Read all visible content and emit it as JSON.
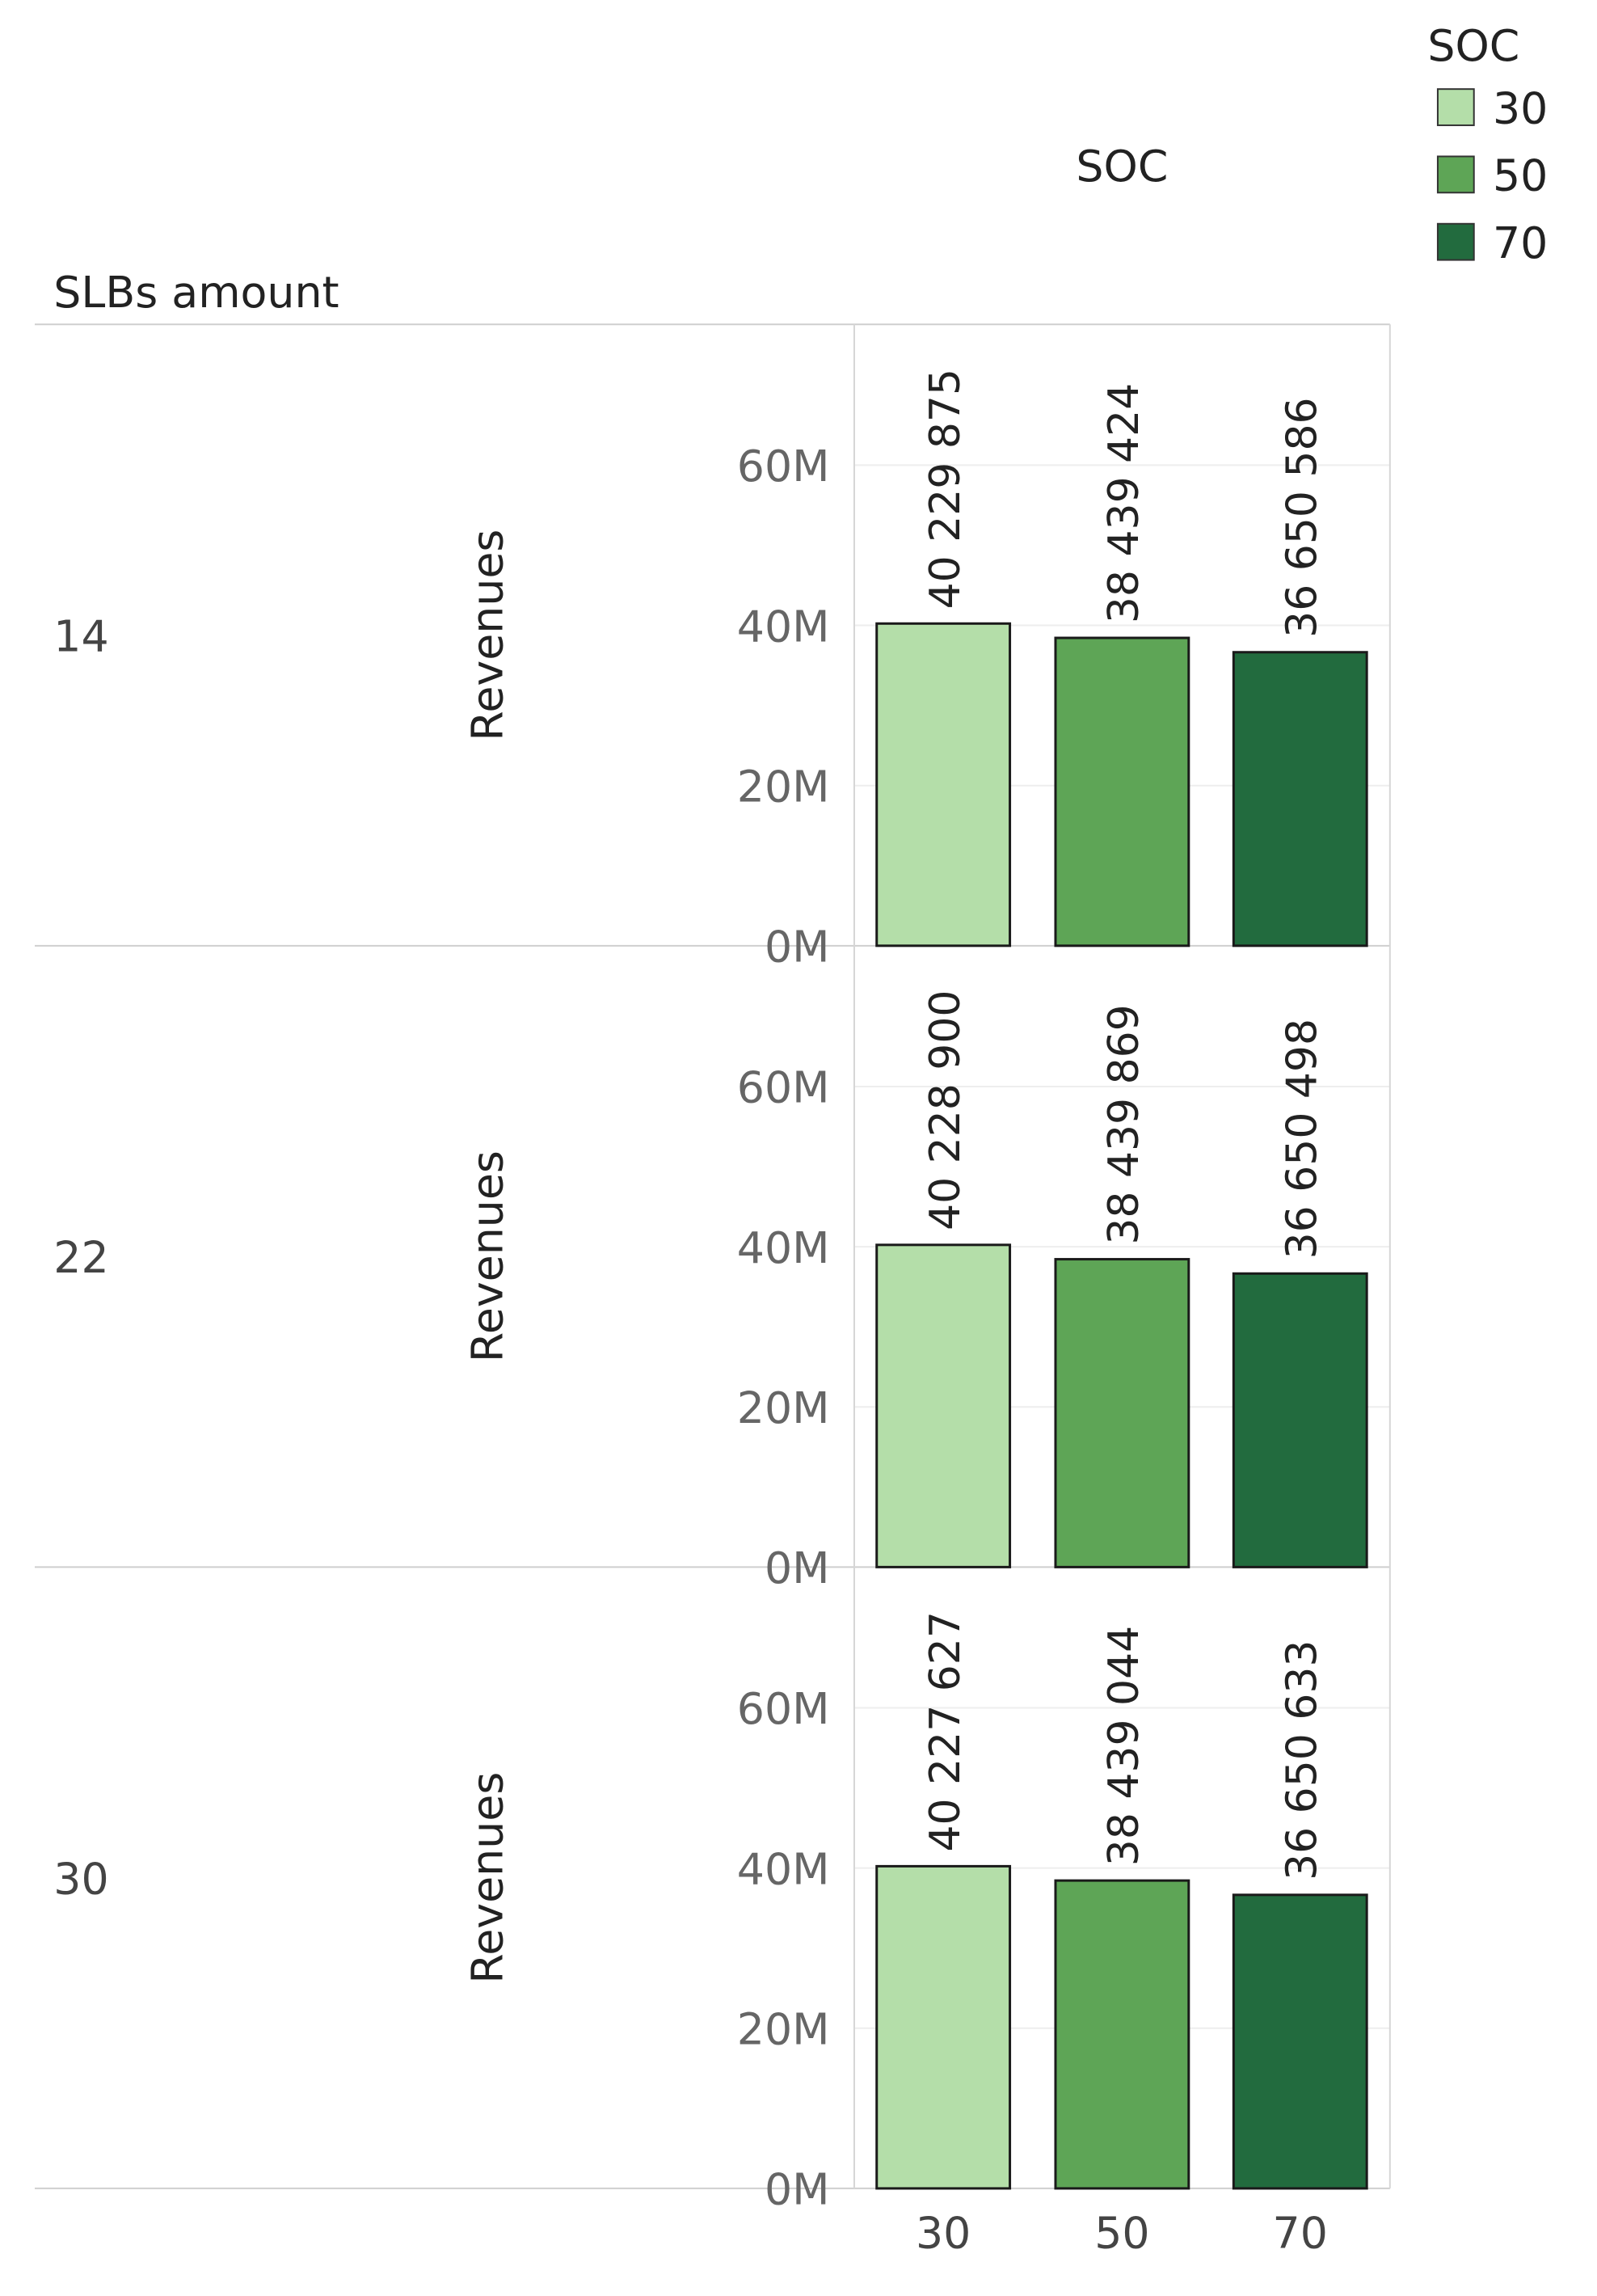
{
  "chart_data": {
    "type": "bar",
    "column_header": "SOC",
    "row_header": "SLBs amount",
    "ylabel": "Revenues",
    "ylim": [
      0,
      70000000
    ],
    "y_ticks": [
      0,
      20000000,
      40000000,
      60000000
    ],
    "y_tick_labels": [
      "0M",
      "20M",
      "40M",
      "60M"
    ],
    "categories": [
      "30",
      "50",
      "70"
    ],
    "legend": {
      "title": "SOC",
      "position": "top-right",
      "items": [
        {
          "label": "30",
          "color": "#b4dea9"
        },
        {
          "label": "50",
          "color": "#5ea556"
        },
        {
          "label": "70",
          "color": "#226b3e"
        }
      ]
    },
    "grid": true,
    "panels": [
      {
        "row_label": "14",
        "values": [
          40229875,
          38439424,
          36650586
        ],
        "value_labels": [
          "40 229 875",
          "38 439 424",
          "36 650 586"
        ]
      },
      {
        "row_label": "22",
        "values": [
          40228900,
          38439869,
          36650498
        ],
        "value_labels": [
          "40 228 900",
          "38 439 869",
          "36 650 498"
        ]
      },
      {
        "row_label": "30",
        "values": [
          40227627,
          38439044,
          36650633
        ],
        "value_labels": [
          "40 227 627",
          "38 439 044",
          "36 650 633"
        ]
      }
    ]
  }
}
